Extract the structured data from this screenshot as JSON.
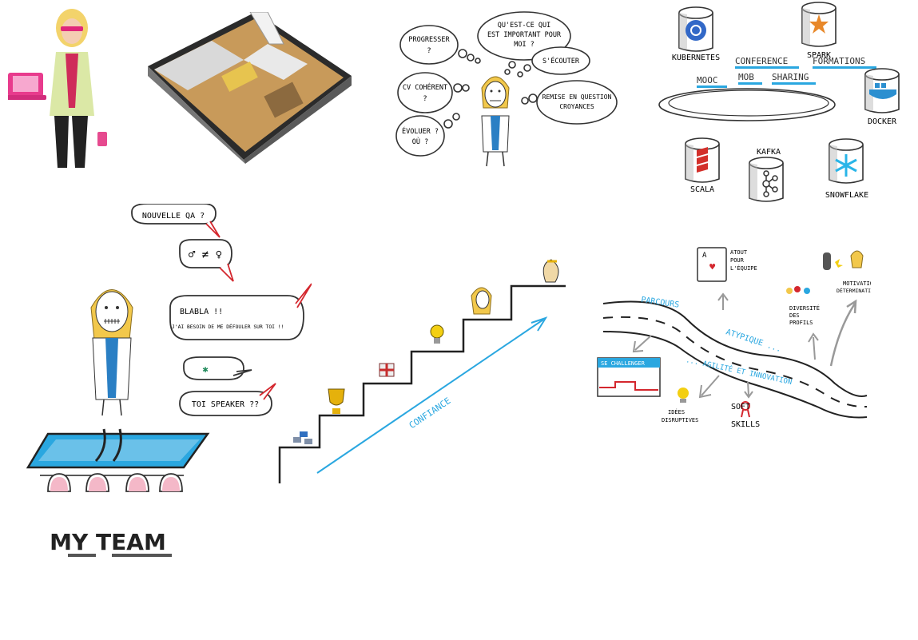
{
  "thoughts": {
    "progresser": "PROGRESSER",
    "progresser_q": "?",
    "important_1": "QU'EST-CE QUI",
    "important_2": "EST IMPORTANT POUR",
    "important_3": "MOI ?",
    "ecouter": "S'ÉCOUTER",
    "cv_1": "CV COHÉRENT",
    "cv_2": "?",
    "remise_1": "REMISE EN QUESTION",
    "remise_2": "CROYANCES",
    "evoluer_1": "ÉVOLUER ?",
    "evoluer_2": "OÙ ?"
  },
  "tech": {
    "kubernetes": "KUBERNETES",
    "spark": "SPARK",
    "conference": "CONFERENCE",
    "formations": "FORMATIONS",
    "mooc": "MOOC",
    "mob": "MOB",
    "sharing": "SHARING",
    "docker": "DOCKER",
    "scala": "SCALA",
    "kafka": "KAFKA",
    "snowflake": "SNOWFLAKE"
  },
  "speech": {
    "qa": "NOUVELLE QA ?",
    "gender": "♂ ≠ ♀",
    "blabla_1": "BLABLA !!",
    "blabla_2": "J'AI BESOIN DE ME DÉFOULER SUR TOI !!",
    "speaker": "TOI SPEAKER ??"
  },
  "team": {
    "label": "MY TEAM"
  },
  "stairs": {
    "confiance": "CONFIANCE"
  },
  "road": {
    "parcours": "PARCOURS",
    "atypique": "ATYPIQUE ...",
    "agilite": "... AGILITÉ ET INNOVATION",
    "challenger": "SE CHALLENGER",
    "atout_1": "ATOUT",
    "atout_2": "POUR",
    "atout_3": "L'ÉQUIPE",
    "diversite_1": "DIVERSITÉ",
    "diversite_2": "DES",
    "diversite_3": "PROFILS",
    "motivation_1": "MOTIVATION",
    "motivation_2": "DÉTERMINATION",
    "idees_1": "IDÉES",
    "idees_2": "DISRUPTIVES",
    "soft_1": "SOFT",
    "soft_2": "SKILLS"
  },
  "colors": {
    "blue": "#2aa7e0",
    "dark_blue": "#1c6fb8",
    "red": "#d4272e",
    "yellow": "#f2c200",
    "ink": "#1a1a1a"
  }
}
